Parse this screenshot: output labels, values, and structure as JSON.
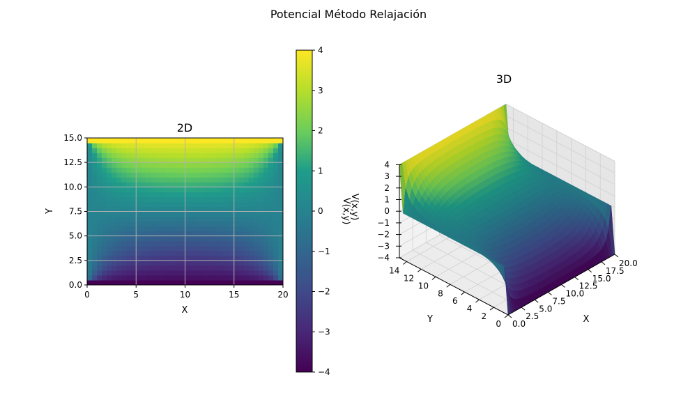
{
  "figure": {
    "suptitle": "Potencial Método Relajación"
  },
  "colormap": [
    "#440154",
    "#482777",
    "#3f4a8a",
    "#31678e",
    "#26838f",
    "#1f9d8a",
    "#6cce5a",
    "#b6de2b",
    "#fde725"
  ],
  "chart_data": [
    {
      "type": "heatmap",
      "title": "2D",
      "xlabel": "X",
      "ylabel": "Y",
      "xlim": [
        0,
        20
      ],
      "ylim": [
        0,
        15
      ],
      "xticks": [
        "0",
        "5",
        "10",
        "15",
        "20"
      ],
      "yticks": [
        "0.0",
        "2.5",
        "5.0",
        "7.5",
        "10.0",
        "12.5",
        "15.0"
      ],
      "grid": true,
      "boundary": {
        "top": 4,
        "bottom": -4,
        "left": 0,
        "right": 0
      },
      "colorbar": {
        "label": "V(x,y)",
        "range": [
          -4,
          4
        ],
        "ticks": [
          "−4",
          "−3",
          "−2",
          "−1",
          "0",
          "1",
          "2",
          "3",
          "4"
        ]
      }
    },
    {
      "type": "surface",
      "title": "3D",
      "xlabel": "X",
      "ylabel": "Y",
      "zlabel": "V(x,y)",
      "xlim": [
        0,
        20
      ],
      "ylim": [
        0,
        15
      ],
      "zlim": [
        -4,
        4
      ],
      "xticks": [
        "0.0",
        "2.5",
        "5.0",
        "7.5",
        "10.0",
        "12.5",
        "15.0",
        "17.5",
        "20.0"
      ],
      "yticks": [
        "0",
        "2",
        "4",
        "6",
        "8",
        "10",
        "12",
        "14"
      ],
      "zticks": [
        "−4",
        "−3",
        "−2",
        "−1",
        "0",
        "1",
        "2",
        "3",
        "4"
      ]
    }
  ]
}
